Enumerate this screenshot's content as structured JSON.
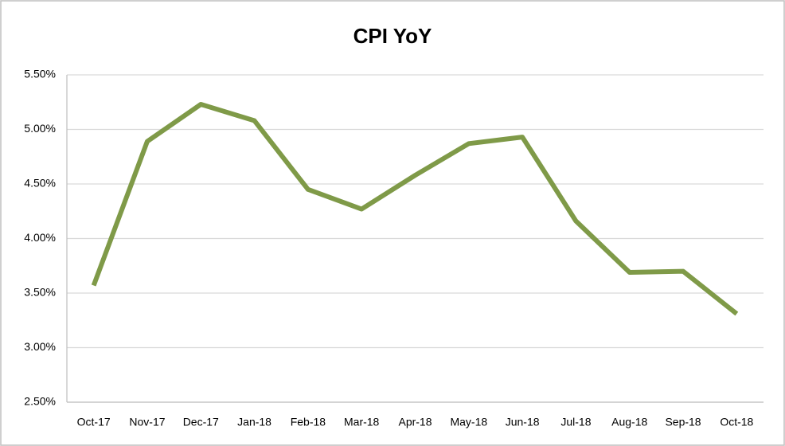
{
  "chart_data": {
    "type": "line",
    "title": "CPI YoY",
    "categories": [
      "Oct-17",
      "Nov-17",
      "Dec-17",
      "Jan-18",
      "Feb-18",
      "Mar-18",
      "Apr-18",
      "May-18",
      "Jun-18",
      "Jul-18",
      "Aug-18",
      "Sep-18",
      "Oct-18"
    ],
    "values": [
      3.57,
      4.89,
      5.23,
      5.08,
      4.45,
      4.27,
      4.58,
      4.87,
      4.93,
      4.16,
      3.69,
      3.7,
      3.31
    ],
    "color": "#7f9a48",
    "ylim": [
      2.5,
      5.5
    ],
    "yticks": [
      {
        "value": 2.5,
        "label": "2.50%"
      },
      {
        "value": 3,
        "label": "3.00%"
      },
      {
        "value": 3.5,
        "label": "3.50%"
      },
      {
        "value": 4,
        "label": "4.00%"
      },
      {
        "value": 4.5,
        "label": "4.50%"
      },
      {
        "value": 5,
        "label": "5.00%"
      },
      {
        "value": 5.5,
        "label": "5.50%"
      }
    ],
    "grid": true
  }
}
